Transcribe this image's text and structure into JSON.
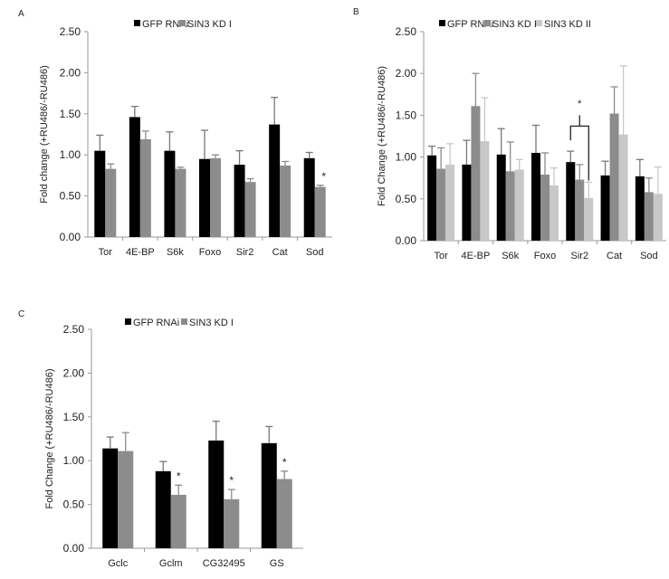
{
  "chart_data": [
    {
      "type": "bar",
      "panel_label": "A",
      "ylabel": "Fold change (+RU486/-RU486)",
      "ylim": [
        0,
        2.5
      ],
      "yticks": [
        "0.00",
        "0.50",
        "1.00",
        "1.50",
        "2.00",
        "2.50"
      ],
      "legend_position": "top",
      "categories": [
        "Tor",
        "4E-BP",
        "S6k",
        "Foxo",
        "Sir2",
        "Cat",
        "Sod"
      ],
      "series": [
        {
          "name": "GFP RNAi",
          "color": "#000000",
          "values": [
            1.05,
            1.46,
            1.05,
            0.95,
            0.88,
            1.37,
            0.96
          ],
          "errors": [
            0.19,
            0.13,
            0.23,
            0.35,
            0.17,
            0.33,
            0.07
          ]
        },
        {
          "name": "SIN3 KD I",
          "color": "#8c8c8c",
          "values": [
            0.83,
            1.19,
            0.83,
            0.96,
            0.67,
            0.87,
            0.61
          ],
          "errors": [
            0.06,
            0.1,
            0.02,
            0.04,
            0.04,
            0.05,
            0.02
          ]
        }
      ],
      "annotations": [
        {
          "text": "*",
          "category": "Sod",
          "series": 1
        }
      ]
    },
    {
      "type": "bar",
      "panel_label": "B",
      "ylabel": "Fold Change (+RU486/-RU486)",
      "ylim": [
        0,
        2.5
      ],
      "yticks": [
        "0.00",
        "0.50",
        "1.00",
        "1.50",
        "2.00",
        "2.50"
      ],
      "legend_position": "top",
      "categories": [
        "Tor",
        "4E-BP",
        "S6k",
        "Foxo",
        "Sir2",
        "Cat",
        "Sod"
      ],
      "series": [
        {
          "name": "GFP RNAi",
          "color": "#000000",
          "values": [
            1.02,
            0.91,
            1.03,
            1.05,
            0.94,
            0.78,
            0.77
          ],
          "errors": [
            0.11,
            0.29,
            0.31,
            0.33,
            0.13,
            0.17,
            0.2
          ]
        },
        {
          "name": "SIN3 KD I",
          "color": "#8c8c8c",
          "values": [
            0.86,
            1.61,
            0.83,
            0.79,
            0.73,
            1.52,
            0.58
          ],
          "errors": [
            0.25,
            0.39,
            0.35,
            0.26,
            0.18,
            0.32,
            0.17
          ]
        },
        {
          "name": "SIN3 KD II",
          "color": "#c8c8c8",
          "values": [
            0.91,
            1.19,
            0.85,
            0.66,
            0.51,
            1.27,
            0.56
          ],
          "errors": [
            0.25,
            0.52,
            0.12,
            0.21,
            0.19,
            0.82,
            0.32
          ]
        }
      ],
      "annotations": [
        {
          "text": "*",
          "category": "Sir2",
          "bracket": [
            0,
            2
          ]
        }
      ]
    },
    {
      "type": "bar",
      "panel_label": "C",
      "ylabel": "Fold Change (+RU486/-RU486)",
      "ylim": [
        0,
        2.5
      ],
      "yticks": [
        "0.00",
        "0.50",
        "1.00",
        "1.50",
        "2.00",
        "2.50"
      ],
      "legend_position": "top",
      "categories": [
        "Gclc",
        "Gclm",
        "CG32495",
        "GS"
      ],
      "series": [
        {
          "name": "GFP RNAi",
          "color": "#000000",
          "values": [
            1.14,
            0.88,
            1.23,
            1.2
          ],
          "errors": [
            0.13,
            0.11,
            0.22,
            0.19
          ]
        },
        {
          "name": "SIN3 KD I",
          "color": "#8c8c8c",
          "values": [
            1.11,
            0.61,
            0.56,
            0.79
          ],
          "errors": [
            0.21,
            0.11,
            0.11,
            0.09
          ]
        }
      ],
      "annotations": [
        {
          "text": "*",
          "category": "Gclm",
          "series": 1
        },
        {
          "text": "*",
          "category": "CG32495",
          "series": 1
        },
        {
          "text": "*",
          "category": "GS",
          "series": 1
        }
      ]
    }
  ]
}
